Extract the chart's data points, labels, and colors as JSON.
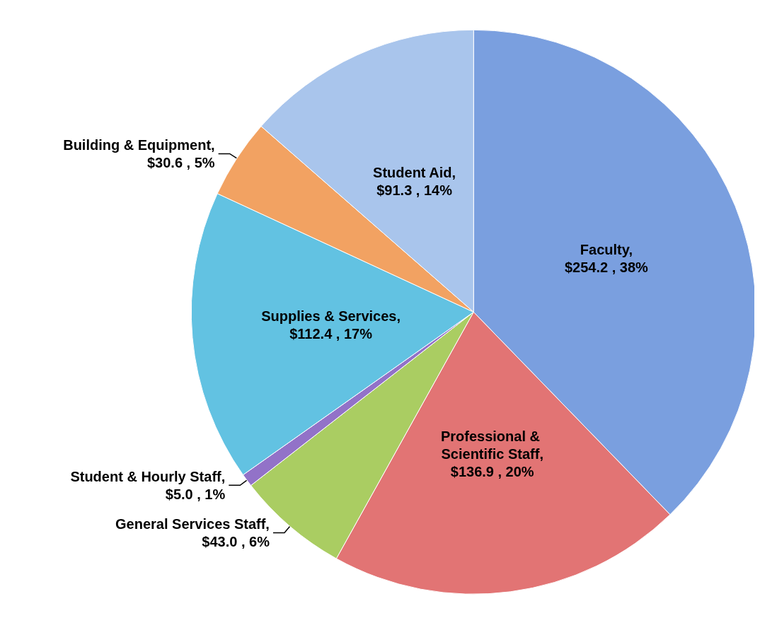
{
  "chart_data": {
    "type": "pie",
    "categories": [
      "Faculty",
      "Professional & Scientific Staff",
      "General Services Staff",
      "Student & Hourly Staff",
      "Supplies & Services",
      "Building & Equipment",
      "Student Aid"
    ],
    "values": [
      254.2,
      136.9,
      43.0,
      5.0,
      112.4,
      30.6,
      91.3
    ],
    "value_labels": [
      ",\n$254.2 , 38%",
      ",\n$136.9 , 20%",
      ",\n$43.0 , 6%",
      ",\n$5.0 , 1%",
      ",\n$112.4 , 17%",
      ",\n$30.6 , 5%",
      ",\n$91.3 , 14%"
    ],
    "colors": [
      "#7a9fdf",
      "#e27474",
      "#aacd62",
      "#9272c8",
      "#62c2e2",
      "#f2a262",
      "#a9c5ec"
    ]
  }
}
